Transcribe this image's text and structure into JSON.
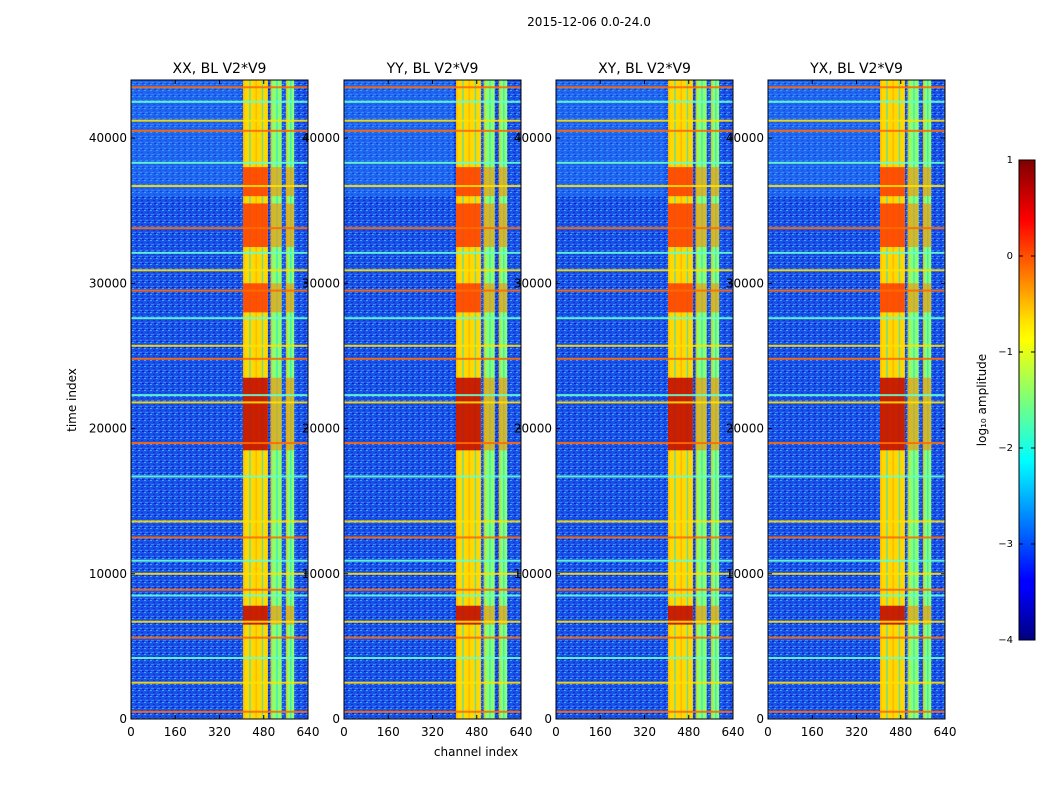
{
  "figure_title": "2015-12-06 0.0-24.0",
  "chart_data": {
    "type": "heatmap",
    "title": "2015-12-06 0.0-24.0",
    "xlabel": "channel index",
    "ylabel": "time index",
    "xlim": [
      0,
      640
    ],
    "ylim": [
      0,
      44000
    ],
    "x_ticks": [
      0,
      160,
      320,
      480,
      640
    ],
    "y_ticks": [
      0,
      10000,
      20000,
      30000,
      40000
    ],
    "panels": [
      {
        "title": "XX, BL V2*V9"
      },
      {
        "title": "YY, BL V2*V9"
      },
      {
        "title": "XY, BL V2*V9"
      },
      {
        "title": "YX, BL V2*V9"
      }
    ],
    "colorbar": {
      "label": "log₁₀ amplitude",
      "range": [
        -4,
        1
      ],
      "ticks": [
        "1",
        "0",
        "−1",
        "−2",
        "−3",
        "−4"
      ],
      "colormap": "jet"
    },
    "rfi_band_channels": [
      [
        405,
        495
      ],
      [
        505,
        545
      ],
      [
        560,
        590
      ]
    ],
    "hot_time_ranges": [
      [
        6500,
        7800
      ],
      [
        18500,
        23500
      ],
      [
        28000,
        30000
      ],
      [
        32500,
        35500
      ],
      [
        36000,
        38000
      ]
    ],
    "horizontal_flag_rows": [
      500,
      2500,
      4200,
      5600,
      6700,
      8500,
      8900,
      10000,
      10900,
      12500,
      13600,
      16700,
      19000,
      21800,
      22300,
      24800,
      25700,
      27600,
      29500,
      30900,
      32100,
      33800,
      36700,
      38300,
      40500,
      41200,
      42500,
      43500
    ]
  }
}
